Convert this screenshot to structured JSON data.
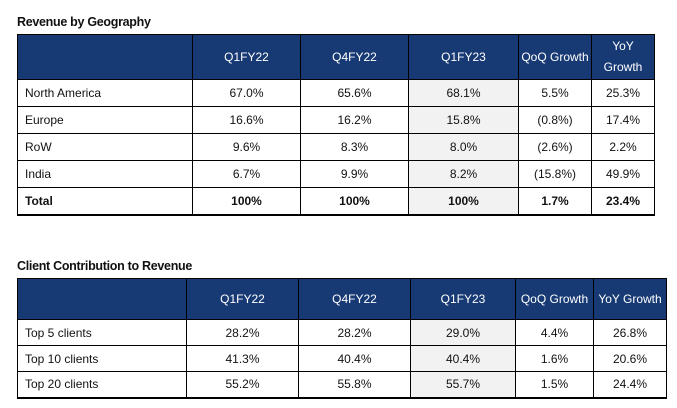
{
  "geo": {
    "title": "Revenue by Geography",
    "headers": [
      "",
      "Q1FY22",
      "Q4FY22",
      "Q1FY23",
      "QoQ Growth",
      "YoY Growth"
    ],
    "rows": [
      [
        "North America",
        "67.0%",
        "65.6%",
        "68.1%",
        "5.5%",
        "25.3%"
      ],
      [
        "Europe",
        "16.6%",
        "16.2%",
        "15.8%",
        "(0.8%)",
        "17.4%"
      ],
      [
        "RoW",
        "9.6%",
        "8.3%",
        "8.0%",
        "(2.6%)",
        "2.2%"
      ],
      [
        "India",
        "6.7%",
        "9.9%",
        "8.2%",
        "(15.8%)",
        "49.9%"
      ],
      [
        "Total",
        "100%",
        "100%",
        "100%",
        "1.7%",
        "23.4%"
      ]
    ]
  },
  "clients": {
    "title": "Client Contribution to Revenue",
    "headers": [
      "",
      "Q1FY22",
      "Q4FY22",
      "Q1FY23",
      "QoQ Growth",
      "YoY Growth"
    ],
    "rows": [
      [
        "Top 5 clients",
        "28.2%",
        "28.2%",
        "29.0%",
        "4.4%",
        "26.8%"
      ],
      [
        "Top 10 clients",
        "41.3%",
        "40.4%",
        "40.4%",
        "1.6%",
        "20.6%"
      ],
      [
        "Top 20 clients",
        "55.2%",
        "55.8%",
        "55.7%",
        "1.5%",
        "24.4%"
      ]
    ]
  },
  "colors": {
    "header": "#183a74",
    "highlight": "#f2f2f2"
  }
}
